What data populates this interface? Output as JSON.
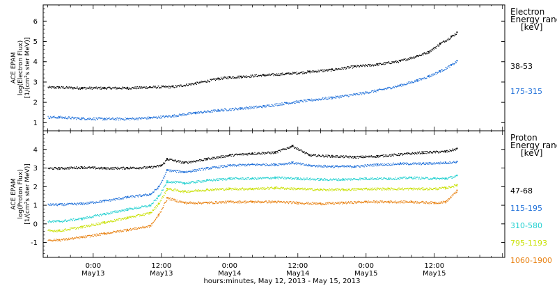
{
  "chart_data": {
    "type": "scatter",
    "x_title": "hours:minutes, May 12, 2013 - May 15, 2013",
    "x_ticks": [
      {
        "hour": 24,
        "time": "0:00",
        "day": "May13"
      },
      {
        "hour": 36,
        "time": "12:00",
        "day": "May13"
      },
      {
        "hour": 48,
        "time": "0:00",
        "day": "May14"
      },
      {
        "hour": 60,
        "time": "12:00",
        "day": "May14"
      },
      {
        "hour": 72,
        "time": "0:00",
        "day": "May15"
      },
      {
        "hour": 84,
        "time": "12:00",
        "day": "May15"
      }
    ],
    "x_range_hours": [
      15.2,
      96.4
    ],
    "panels": [
      {
        "id": "electron",
        "ylabel": [
          "ACE EPAM",
          "log(Electron Flux)",
          "[1/(cm²s ster MeV)]"
        ],
        "ylim": [
          0.6,
          6.8
        ],
        "yticks": [
          1,
          2,
          3,
          4,
          5,
          6
        ],
        "legend_title": [
          "Electron",
          "Energy ranges",
          "[keV]"
        ],
        "series": [
          {
            "name": "38-53",
            "color": "#000000",
            "points": [
              [
                18,
                2.75
              ],
              [
                22,
                2.72
              ],
              [
                26,
                2.72
              ],
              [
                30,
                2.72
              ],
              [
                34,
                2.76
              ],
              [
                38,
                2.78
              ],
              [
                42,
                2.95
              ],
              [
                46,
                3.18
              ],
              [
                48,
                3.25
              ],
              [
                50,
                3.28
              ],
              [
                54,
                3.35
              ],
              [
                58,
                3.42
              ],
              [
                62,
                3.52
              ],
              [
                66,
                3.62
              ],
              [
                70,
                3.78
              ],
              [
                74,
                3.88
              ],
              [
                78,
                4.05
              ],
              [
                81,
                4.3
              ],
              [
                83,
                4.5
              ],
              [
                85,
                4.9
              ],
              [
                87,
                5.25
              ],
              [
                88,
                5.45
              ]
            ]
          },
          {
            "name": "175-315",
            "color": "#1e6fd9",
            "points": [
              [
                18,
                1.28
              ],
              [
                22,
                1.22
              ],
              [
                26,
                1.2
              ],
              [
                30,
                1.2
              ],
              [
                34,
                1.25
              ],
              [
                38,
                1.35
              ],
              [
                42,
                1.5
              ],
              [
                46,
                1.62
              ],
              [
                50,
                1.72
              ],
              [
                54,
                1.82
              ],
              [
                58,
                1.98
              ],
              [
                62,
                2.12
              ],
              [
                66,
                2.25
              ],
              [
                70,
                2.4
              ],
              [
                74,
                2.6
              ],
              [
                78,
                2.85
              ],
              [
                81,
                3.1
              ],
              [
                83,
                3.3
              ],
              [
                85,
                3.55
              ],
              [
                87,
                3.85
              ],
              [
                88,
                4.05
              ]
            ]
          }
        ]
      },
      {
        "id": "proton",
        "ylabel": [
          "ACE EPAM",
          "log(Proton Flux)",
          "[1/(cm²s ster MeV)]"
        ],
        "ylim": [
          -1.8,
          5.0
        ],
        "yticks": [
          -1,
          0,
          1,
          2,
          3,
          4
        ],
        "legend_title": [
          "Proton",
          "Energy ranges",
          "[keV]"
        ],
        "series": [
          {
            "name": "47-68",
            "color": "#000000",
            "points": [
              [
                18,
                3.0
              ],
              [
                22,
                3.05
              ],
              [
                26,
                3.0
              ],
              [
                30,
                3.02
              ],
              [
                34,
                3.05
              ],
              [
                36,
                3.15
              ],
              [
                37,
                3.5
              ],
              [
                40,
                3.3
              ],
              [
                44,
                3.5
              ],
              [
                48,
                3.7
              ],
              [
                52,
                3.8
              ],
              [
                56,
                3.85
              ],
              [
                59,
                4.2
              ],
              [
                62,
                3.7
              ],
              [
                66,
                3.65
              ],
              [
                70,
                3.6
              ],
              [
                74,
                3.65
              ],
              [
                78,
                3.75
              ],
              [
                82,
                3.85
              ],
              [
                86,
                3.9
              ],
              [
                88,
                4.05
              ]
            ]
          },
          {
            "name": "115-195",
            "color": "#1e6fd9",
            "points": [
              [
                18,
                1.05
              ],
              [
                22,
                1.1
              ],
              [
                26,
                1.25
              ],
              [
                30,
                1.45
              ],
              [
                34,
                1.6
              ],
              [
                35.5,
                2.0
              ],
              [
                37,
                2.9
              ],
              [
                40,
                2.8
              ],
              [
                44,
                3.0
              ],
              [
                48,
                3.15
              ],
              [
                52,
                3.2
              ],
              [
                56,
                3.2
              ],
              [
                59,
                3.3
              ],
              [
                62,
                3.15
              ],
              [
                66,
                3.1
              ],
              [
                70,
                3.1
              ],
              [
                74,
                3.2
              ],
              [
                78,
                3.25
              ],
              [
                82,
                3.25
              ],
              [
                86,
                3.3
              ],
              [
                88,
                3.35
              ]
            ]
          },
          {
            "name": "310-580",
            "color": "#22d0d0",
            "points": [
              [
                18,
                0.15
              ],
              [
                22,
                0.3
              ],
              [
                26,
                0.55
              ],
              [
                30,
                0.8
              ],
              [
                34,
                1.0
              ],
              [
                35.5,
                1.5
              ],
              [
                37,
                2.3
              ],
              [
                40,
                2.2
              ],
              [
                44,
                2.35
              ],
              [
                48,
                2.45
              ],
              [
                52,
                2.45
              ],
              [
                56,
                2.5
              ],
              [
                60,
                2.45
              ],
              [
                64,
                2.4
              ],
              [
                68,
                2.4
              ],
              [
                72,
                2.45
              ],
              [
                76,
                2.45
              ],
              [
                80,
                2.5
              ],
              [
                84,
                2.45
              ],
              [
                86,
                2.45
              ],
              [
                88,
                2.6
              ]
            ]
          },
          {
            "name": "795-1193",
            "color": "#c8e000",
            "points": [
              [
                18,
                -0.35
              ],
              [
                22,
                -0.15
              ],
              [
                26,
                0.1
              ],
              [
                30,
                0.35
              ],
              [
                34,
                0.6
              ],
              [
                35.5,
                1.1
              ],
              [
                37,
                1.9
              ],
              [
                40,
                1.75
              ],
              [
                44,
                1.85
              ],
              [
                48,
                1.9
              ],
              [
                52,
                1.9
              ],
              [
                56,
                1.95
              ],
              [
                60,
                1.9
              ],
              [
                64,
                1.85
              ],
              [
                68,
                1.85
              ],
              [
                72,
                1.9
              ],
              [
                76,
                1.9
              ],
              [
                80,
                1.9
              ],
              [
                84,
                1.9
              ],
              [
                86,
                1.95
              ],
              [
                88,
                2.1
              ]
            ]
          },
          {
            "name": "1060-1900",
            "color": "#e88010",
            "points": [
              [
                18,
                -0.85
              ],
              [
                22,
                -0.7
              ],
              [
                26,
                -0.5
              ],
              [
                30,
                -0.3
              ],
              [
                34,
                -0.1
              ],
              [
                35.5,
                0.5
              ],
              [
                37,
                1.4
              ],
              [
                40,
                1.15
              ],
              [
                44,
                1.15
              ],
              [
                48,
                1.2
              ],
              [
                52,
                1.2
              ],
              [
                56,
                1.2
              ],
              [
                60,
                1.15
              ],
              [
                64,
                1.1
              ],
              [
                68,
                1.15
              ],
              [
                72,
                1.2
              ],
              [
                76,
                1.2
              ],
              [
                80,
                1.2
              ],
              [
                84,
                1.15
              ],
              [
                86,
                1.2
              ],
              [
                88,
                1.8
              ]
            ]
          }
        ]
      }
    ]
  }
}
